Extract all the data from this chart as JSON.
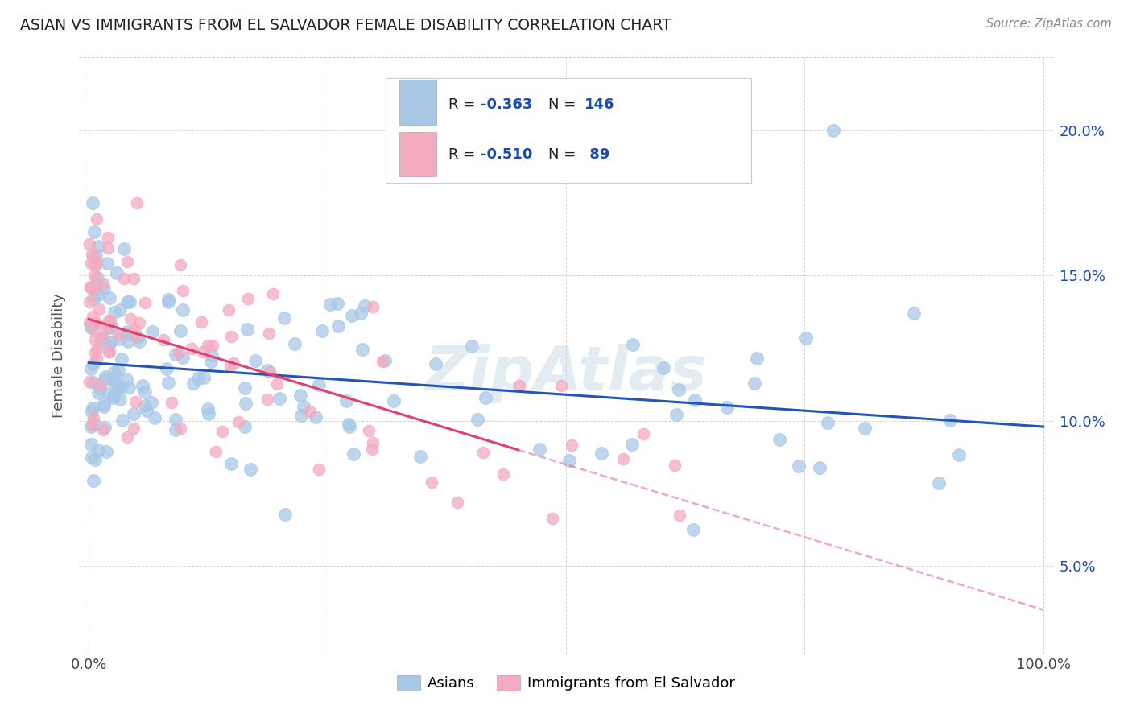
{
  "title": "ASIAN VS IMMIGRANTS FROM EL SALVADOR FEMALE DISABILITY CORRELATION CHART",
  "source": "Source: ZipAtlas.com",
  "ylabel": "Female Disability",
  "asian_R": "-0.363",
  "asian_N": "146",
  "salvador_R": "-0.510",
  "salvador_N": "89",
  "asian_color": "#a8c8e8",
  "salvador_color": "#f4aabf",
  "asian_line_color": "#2255bb",
  "salvador_line_color": "#e04070",
  "watermark": "ZipAtlas",
  "background_color": "#ffffff",
  "legend_text_color": "#1a4aaa",
  "grid_color": "#cccccc",
  "right_tick_color": "#1a4aaa",
  "title_color": "#222222",
  "source_color": "#888888",
  "ylabel_color": "#555555",
  "asian_line_intercept": 12.0,
  "asian_line_slope": -0.022,
  "salvador_line_intercept": 13.5,
  "salvador_line_slope": -0.1,
  "salvador_solid_end": 45,
  "xlim_min": -1,
  "xlim_max": 101,
  "ylim_min": 2.0,
  "ylim_max": 22.5,
  "ytick_vals": [
    5,
    10,
    15,
    20
  ],
  "ytick_labels": [
    "5.0%",
    "10.0%",
    "15.0%",
    "20.0%"
  ],
  "xtick_vals": [
    0,
    25,
    50,
    75,
    100
  ],
  "xtick_labels": [
    "0.0%",
    "",
    "",
    "",
    "100.0%"
  ]
}
